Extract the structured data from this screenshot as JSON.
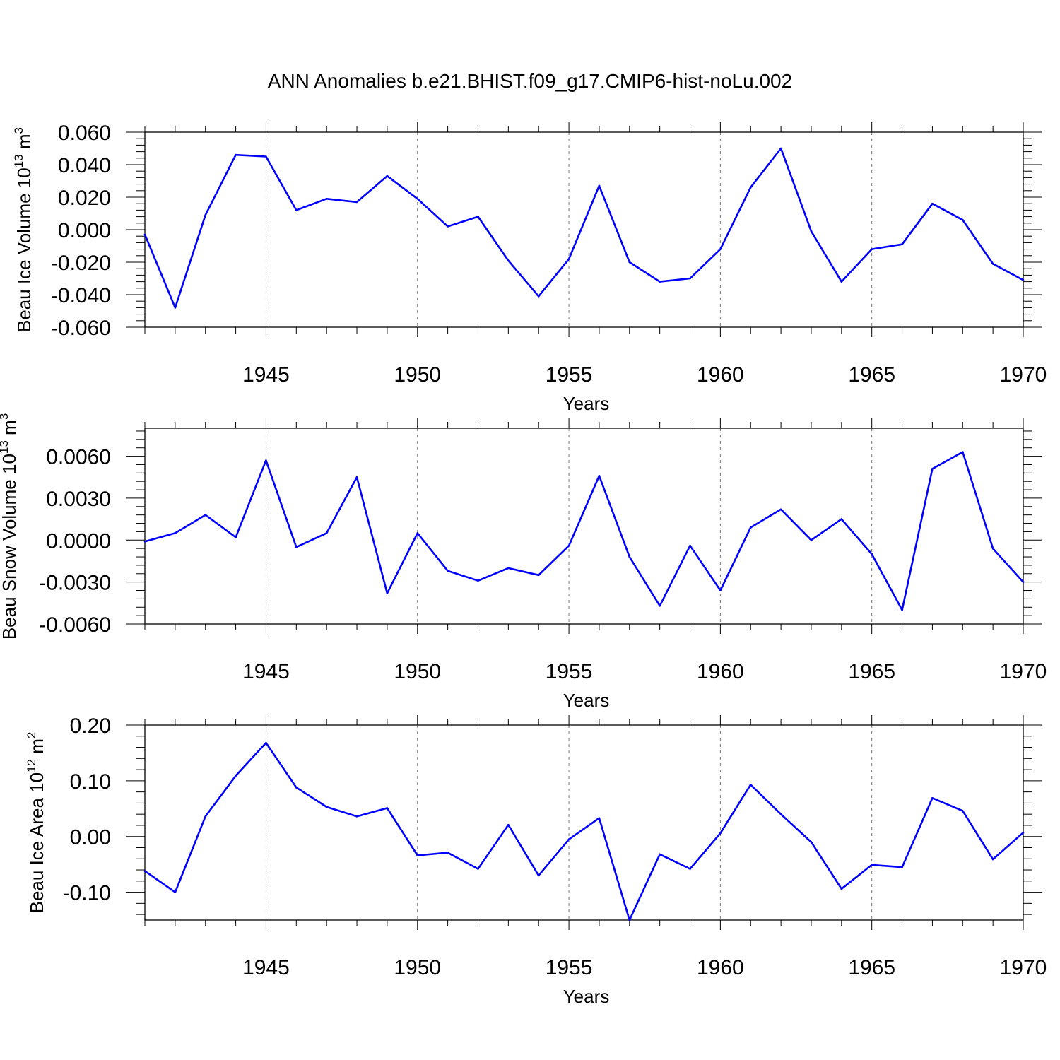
{
  "title": "ANN Anomalies b.e21.BHIST.f09_g17.CMIP6-hist-noLu.002",
  "colors": {
    "series": "#0000ff",
    "grid": "#777777"
  },
  "chart_data": [
    {
      "type": "line",
      "ylabel": "Beau Ice Volume 10",
      "ylabel_exp": "13",
      "ylabel_unit": " m",
      "ylabel_unit_exp": "3",
      "xlabel": "Years",
      "xlim": [
        1941,
        1970
      ],
      "ylim": [
        -0.06,
        0.06
      ],
      "yticks": [
        -0.06,
        -0.04,
        -0.02,
        0.0,
        0.02,
        0.04,
        0.06
      ],
      "ytick_labels": [
        "-0.060",
        "-0.040",
        "-0.020",
        "0.000",
        "0.020",
        "0.040",
        "0.060"
      ],
      "xticks": [
        1945,
        1950,
        1955,
        1960,
        1965,
        1970
      ],
      "xtick_labels": [
        "1945",
        "1950",
        "1955",
        "1960",
        "1965",
        "1970"
      ],
      "grid": "vertical dashed at labeled years",
      "x": [
        1941,
        1942,
        1943,
        1944,
        1945,
        1946,
        1947,
        1948,
        1949,
        1950,
        1951,
        1952,
        1953,
        1954,
        1955,
        1956,
        1957,
        1958,
        1959,
        1960,
        1961,
        1962,
        1963,
        1964,
        1965,
        1966,
        1967,
        1968,
        1969,
        1970
      ],
      "y": [
        -0.003,
        -0.048,
        0.009,
        0.046,
        0.045,
        0.012,
        0.019,
        0.017,
        0.033,
        0.019,
        0.002,
        0.008,
        -0.019,
        -0.041,
        -0.018,
        0.027,
        -0.02,
        -0.032,
        -0.03,
        -0.012,
        0.026,
        0.05,
        -0.001,
        -0.032,
        -0.012,
        -0.009,
        0.016,
        0.006,
        -0.021,
        -0.031
      ]
    },
    {
      "type": "line",
      "ylabel": "Beau Snow Volume 10",
      "ylabel_exp": "13",
      "ylabel_unit": " m",
      "ylabel_unit_exp": "3",
      "xlabel": "Years",
      "xlim": [
        1941,
        1970
      ],
      "ylim": [
        -0.006,
        0.008
      ],
      "yticks": [
        -0.006,
        -0.003,
        0.0,
        0.003,
        0.006
      ],
      "ytick_labels": [
        "-0.0060",
        "-0.0030",
        "0.0000",
        "0.0030",
        "0.0060"
      ],
      "xticks": [
        1945,
        1950,
        1955,
        1960,
        1965,
        1970
      ],
      "xtick_labels": [
        "1945",
        "1950",
        "1955",
        "1960",
        "1965",
        "1970"
      ],
      "grid": "vertical dashed at labeled years",
      "x": [
        1941,
        1942,
        1943,
        1944,
        1945,
        1946,
        1947,
        1948,
        1949,
        1950,
        1951,
        1952,
        1953,
        1954,
        1955,
        1956,
        1957,
        1958,
        1959,
        1960,
        1961,
        1962,
        1963,
        1964,
        1965,
        1966,
        1967,
        1968,
        1969,
        1970
      ],
      "y": [
        -0.0001,
        0.0005,
        0.0018,
        0.0002,
        0.0057,
        -0.0005,
        0.0005,
        0.0045,
        -0.0038,
        0.0005,
        -0.0022,
        -0.0029,
        -0.002,
        -0.0025,
        -0.0004,
        0.0046,
        -0.0012,
        -0.0047,
        -0.0004,
        -0.0036,
        0.0009,
        0.0022,
        0.0,
        0.0015,
        -0.001,
        -0.005,
        0.0051,
        0.0063,
        -0.0006,
        -0.003
      ]
    },
    {
      "type": "line",
      "ylabel": "Beau Ice Area 10",
      "ylabel_exp": "12",
      "ylabel_unit": " m",
      "ylabel_unit_exp": "2",
      "xlabel": "Years",
      "xlim": [
        1941,
        1970
      ],
      "ylim": [
        -0.15,
        0.2
      ],
      "yticks": [
        -0.1,
        0.0,
        0.1,
        0.2
      ],
      "ytick_labels": [
        "-0.10",
        "0.00",
        "0.10",
        "0.20"
      ],
      "xticks": [
        1945,
        1950,
        1955,
        1960,
        1965,
        1970
      ],
      "xtick_labels": [
        "1945",
        "1950",
        "1955",
        "1960",
        "1965",
        "1970"
      ],
      "grid": "vertical dashed at labeled years",
      "x": [
        1941,
        1942,
        1943,
        1944,
        1945,
        1946,
        1947,
        1948,
        1949,
        1950,
        1951,
        1952,
        1953,
        1954,
        1955,
        1956,
        1957,
        1958,
        1959,
        1960,
        1961,
        1962,
        1963,
        1964,
        1965,
        1966,
        1967,
        1968,
        1969,
        1970
      ],
      "y": [
        -0.062,
        -0.1,
        0.036,
        0.109,
        0.168,
        0.088,
        0.053,
        0.036,
        0.051,
        -0.034,
        -0.029,
        -0.058,
        0.021,
        -0.07,
        -0.005,
        0.033,
        -0.15,
        -0.032,
        -0.058,
        0.006,
        0.093,
        0.04,
        -0.01,
        -0.094,
        -0.051,
        -0.055,
        0.069,
        0.046,
        -0.041,
        0.007
      ]
    }
  ]
}
